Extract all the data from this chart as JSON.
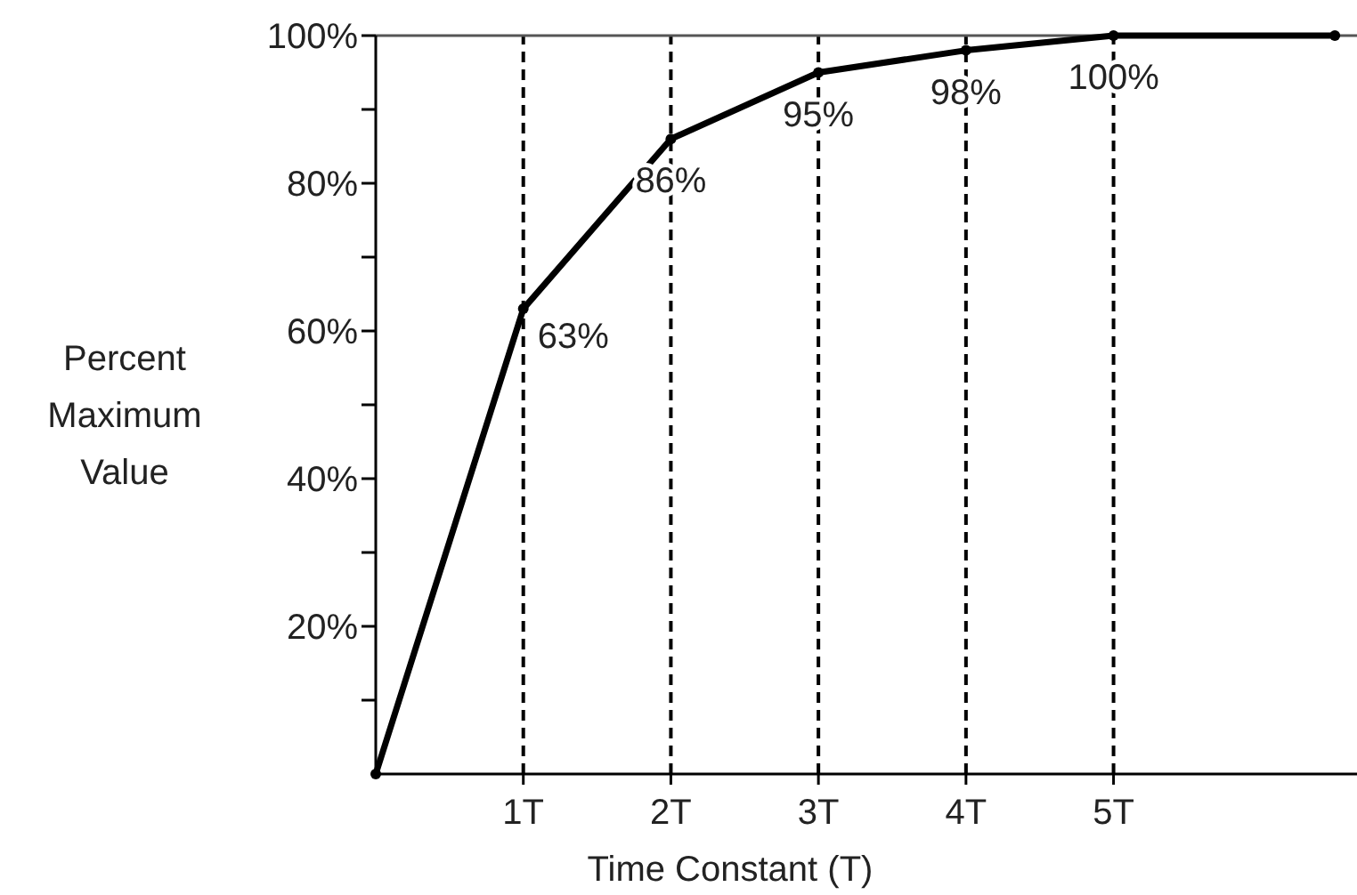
{
  "chart_data": {
    "type": "line",
    "xlabel": "Time Constant (T)",
    "ylabel": "Percent Maximum Value",
    "x": [
      0,
      1,
      2,
      3,
      4,
      5,
      6.5
    ],
    "series": [
      {
        "color": "#000000",
        "values": [
          0,
          63,
          86,
          95,
          98,
          100,
          100
        ],
        "value_labels": [
          null,
          "63%",
          "86%",
          "95%",
          "98%",
          "100%",
          null
        ]
      }
    ],
    "xlim": [
      0,
      6.65
    ],
    "xticks": [
      {
        "value": 1,
        "label": "1T"
      },
      {
        "value": 2,
        "label": "2T"
      },
      {
        "value": 3,
        "label": "3T"
      },
      {
        "value": 4,
        "label": "4T"
      },
      {
        "value": 5,
        "label": "5T"
      }
    ],
    "ylim": [
      0,
      100
    ],
    "yticks": [
      {
        "value": 10,
        "label": null
      },
      {
        "value": 20,
        "label": "20%"
      },
      {
        "value": 30,
        "label": null
      },
      {
        "value": 40,
        "label": "40%"
      },
      {
        "value": 50,
        "label": null
      },
      {
        "value": 60,
        "label": "60%"
      },
      {
        "value": 70,
        "label": null
      },
      {
        "value": 80,
        "label": "80%"
      },
      {
        "value": 90,
        "label": null
      },
      {
        "value": 100,
        "label": "100%"
      }
    ],
    "ref_lines": [
      {
        "axis": "x",
        "value": 1,
        "line_style": "dashed",
        "color": "#000000"
      },
      {
        "axis": "x",
        "value": 2,
        "line_style": "dashed",
        "color": "#000000"
      },
      {
        "axis": "x",
        "value": 3,
        "line_style": "dashed",
        "color": "#000000"
      },
      {
        "axis": "x",
        "value": 4,
        "line_style": "dashed",
        "color": "#000000"
      },
      {
        "axis": "x",
        "value": 5,
        "line_style": "dashed",
        "color": "#000000"
      },
      {
        "axis": "y",
        "value": 100,
        "line_style": "solid",
        "color": "#555555"
      }
    ],
    "grid": false,
    "marker": "circle",
    "line_style": "solid"
  }
}
